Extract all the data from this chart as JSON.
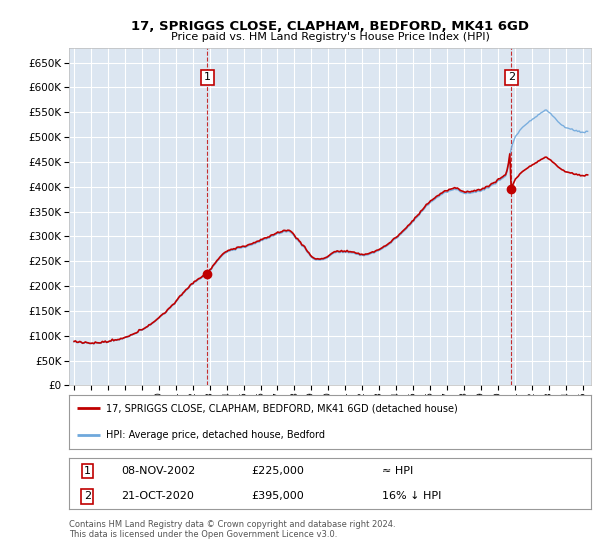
{
  "title": "17, SPRIGGS CLOSE, CLAPHAM, BEDFORD, MK41 6GD",
  "subtitle": "Price paid vs. HM Land Registry's House Price Index (HPI)",
  "plot_bg_color": "#dce6f1",
  "grid_color": "#ffffff",
  "hpi_color": "#6fa8dc",
  "price_color": "#c00000",
  "marker1_date_num": 2002.86,
  "marker1_price": 225000,
  "marker2_date_num": 2020.8,
  "marker2_price": 395000,
  "legend1": "17, SPRIGGS CLOSE, CLAPHAM, BEDFORD, MK41 6GD (detached house)",
  "legend2": "HPI: Average price, detached house, Bedford",
  "table_row1": [
    "1",
    "08-NOV-2002",
    "£225,000",
    "≈ HPI"
  ],
  "table_row2": [
    "2",
    "21-OCT-2020",
    "£395,000",
    "16% ↓ HPI"
  ],
  "footnote": "Contains HM Land Registry data © Crown copyright and database right 2024.\nThis data is licensed under the Open Government Licence v3.0.",
  "ylim": [
    0,
    680000
  ],
  "yticks": [
    0,
    50000,
    100000,
    150000,
    200000,
    250000,
    300000,
    350000,
    400000,
    450000,
    500000,
    550000,
    600000,
    650000
  ],
  "xstart": 1994.7,
  "xend": 2025.5
}
